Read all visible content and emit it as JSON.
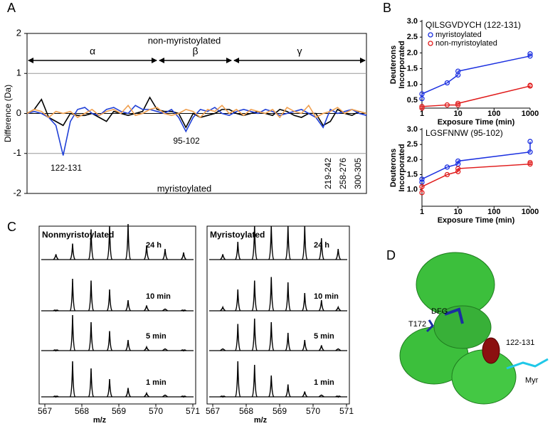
{
  "panels": [
    "A",
    "B",
    "C",
    "D"
  ],
  "chart_data": [
    {
      "type": "diff",
      "ylabel": "Difference (Da)",
      "ylim": [
        -2,
        2
      ],
      "yticks": [
        -2,
        -1,
        0,
        1,
        2
      ],
      "grid": true,
      "regions": [
        "α",
        "β",
        "γ"
      ],
      "annotations": [
        "non-myristoylated",
        "myristoylated",
        "122-131",
        "95-102",
        "219-242",
        "258-276",
        "300-305"
      ],
      "series": [
        {
          "color": "#000000",
          "values": [
            0,
            0.1,
            0.35,
            -0.1,
            -0.2,
            -0.3,
            0,
            -0.05,
            -0.05,
            0,
            -0.1,
            -0.2,
            0.05,
            0,
            -0.05,
            0,
            0.05,
            0.4,
            0.1,
            0.05,
            0.05,
            0,
            -0.35,
            0,
            -0.1,
            -0.05,
            0,
            0.1,
            0.1,
            0,
            -0.05,
            0,
            0.05,
            0,
            -0.05,
            0.1,
            0.05,
            -0.05,
            -0.1,
            0,
            0,
            -0.3,
            -0.2,
            0.1,
            0,
            -0.05,
            0.05,
            0
          ]
        },
        {
          "color": "#1f3fd6",
          "values": [
            0,
            0.05,
            0,
            -0.1,
            -0.3,
            -1.05,
            -0.2,
            0.1,
            0.15,
            0,
            -0.05,
            0.1,
            0.15,
            0.05,
            0,
            0.2,
            0.1,
            0.1,
            0.05,
            0,
            0.1,
            -0.1,
            -0.45,
            -0.1,
            0.1,
            0.05,
            0.15,
            0,
            -0.05,
            0.05,
            0.1,
            0.05,
            0,
            0.1,
            0.05,
            -0.05,
            0,
            0.05,
            0.1,
            0,
            -0.1,
            -0.35,
            0.1,
            0,
            0.05,
            0.1,
            0,
            -0.05
          ]
        },
        {
          "color": "#f0a050",
          "values": [
            0,
            0.1,
            0.05,
            -0.1,
            0.05,
            0,
            0.05,
            -0.1,
            0,
            0.1,
            -0.05,
            0.05,
            0.1,
            0,
            0.2,
            -0.05,
            0,
            0.1,
            0.15,
            0,
            -0.05,
            0,
            0.1,
            0.05,
            -0.1,
            0.1,
            0.05,
            0.2,
            0,
            0.1,
            -0.05,
            0.1,
            0.05,
            0,
            0.1,
            -0.1,
            0.15,
            0.05,
            0,
            0.2,
            -0.1,
            0,
            0.05,
            0.15,
            0,
            0.1,
            0.05,
            0
          ]
        }
      ]
    },
    {
      "type": "line",
      "title": "QILSGVDYCH (122-131)",
      "xlabel": "Exposure Time (min)",
      "ylabel": [
        "Deuterons",
        "Incorporated"
      ],
      "xscale": "log",
      "xlim": [
        1,
        1000
      ],
      "xticks": [
        1,
        10,
        100,
        1000
      ],
      "ylim": [
        0.25,
        3.0
      ],
      "yticks": [
        0.5,
        {
          "value": 1,
          "label": "1.0"
        },
        1.5,
        {
          "value": 2,
          "label": "2.0"
        },
        2.5,
        {
          "value": 3,
          "label": "3.0"
        }
      ],
      "legend": "upper left",
      "x": [
        1,
        1,
        5,
        10,
        10,
        1000,
        1000
      ],
      "series": [
        {
          "name": "myristoylated",
          "color": "#1a2fe0",
          "values": [
            0.55,
            0.7,
            1.05,
            1.3,
            1.42,
            1.9,
            1.97
          ]
        },
        {
          "name": "non-myristoylated",
          "color": "#e01a1a",
          "values": [
            0.25,
            0.3,
            0.35,
            0.35,
            0.4,
            0.95,
            0.97
          ]
        }
      ]
    },
    {
      "type": "line",
      "title": "LGSFNNW (95-102)",
      "xlabel": "Exposure Time (min)",
      "ylabel": [
        "Deuterons",
        "Incorporated"
      ],
      "xscale": "log",
      "xlim": [
        1,
        1000
      ],
      "xticks": [
        1,
        10,
        100,
        1000
      ],
      "ylim": [
        0.45,
        3.0
      ],
      "yticks": [
        {
          "value": 1,
          "label": "1.0"
        },
        1.5,
        {
          "value": 2,
          "label": "2.0"
        },
        2.5,
        {
          "value": 3,
          "label": "3.0"
        }
      ],
      "x": [
        1,
        1,
        5,
        10,
        10,
        1000,
        1000
      ],
      "series": [
        {
          "color": "#1a2fe0",
          "values": [
            1.25,
            1.35,
            1.75,
            1.85,
            1.95,
            2.25,
            2.6
          ]
        },
        {
          "color": "#e01a1a",
          "values": [
            0.9,
            1.1,
            1.5,
            1.6,
            1.7,
            1.85,
            1.9
          ]
        }
      ]
    },
    {
      "type": "spectrum",
      "title": "Nonmyristoylated",
      "xlabel": "m/z",
      "xlim": [
        567,
        571
      ],
      "xticks": [
        567,
        568,
        569,
        570,
        571
      ],
      "x": [
        567.3,
        567.75,
        568.25,
        568.75,
        569.25,
        569.75,
        570.25,
        570.75
      ],
      "traces": [
        {
          "name": "24 h",
          "values": [
            0.15,
            0.45,
            0.85,
            0.95,
            1.0,
            0.4,
            0.3,
            0.2
          ]
        },
        {
          "name": "10 min",
          "values": [
            0,
            0.9,
            0.85,
            0.6,
            0.3,
            0.15,
            0.05,
            0
          ]
        },
        {
          "name": "5 min",
          "values": [
            0,
            1.0,
            0.8,
            0.55,
            0.3,
            0.1,
            0.05,
            0
          ]
        },
        {
          "name": "1 min",
          "values": [
            0,
            1.0,
            0.8,
            0.5,
            0.25,
            0.1,
            0.05,
            0
          ]
        }
      ]
    },
    {
      "type": "spectrum",
      "title": "Myristoylated",
      "xlabel": "m/z",
      "xlim": [
        567,
        571
      ],
      "xticks": [
        567,
        568,
        569,
        570,
        571
      ],
      "x": [
        567.3,
        567.75,
        568.25,
        568.75,
        569.25,
        569.75,
        570.25,
        570.75
      ],
      "traces": [
        {
          "name": "24 h",
          "values": [
            0.15,
            0.5,
            0.95,
            0.95,
            0.95,
            0.95,
            0.6,
            0.3
          ]
        },
        {
          "name": "10 min",
          "values": [
            0.1,
            0.6,
            0.85,
            0.95,
            0.8,
            0.5,
            0.3,
            0.1
          ]
        },
        {
          "name": "5 min",
          "values": [
            0.05,
            0.75,
            0.9,
            0.8,
            0.5,
            0.3,
            0.15,
            0.05
          ]
        },
        {
          "name": "1 min",
          "values": [
            0,
            1.0,
            0.9,
            0.6,
            0.35,
            0.15,
            0.05,
            0
          ]
        }
      ]
    }
  ],
  "structure": {
    "labels": [
      "DFG",
      "T172",
      "122-131",
      "Myr"
    ]
  }
}
